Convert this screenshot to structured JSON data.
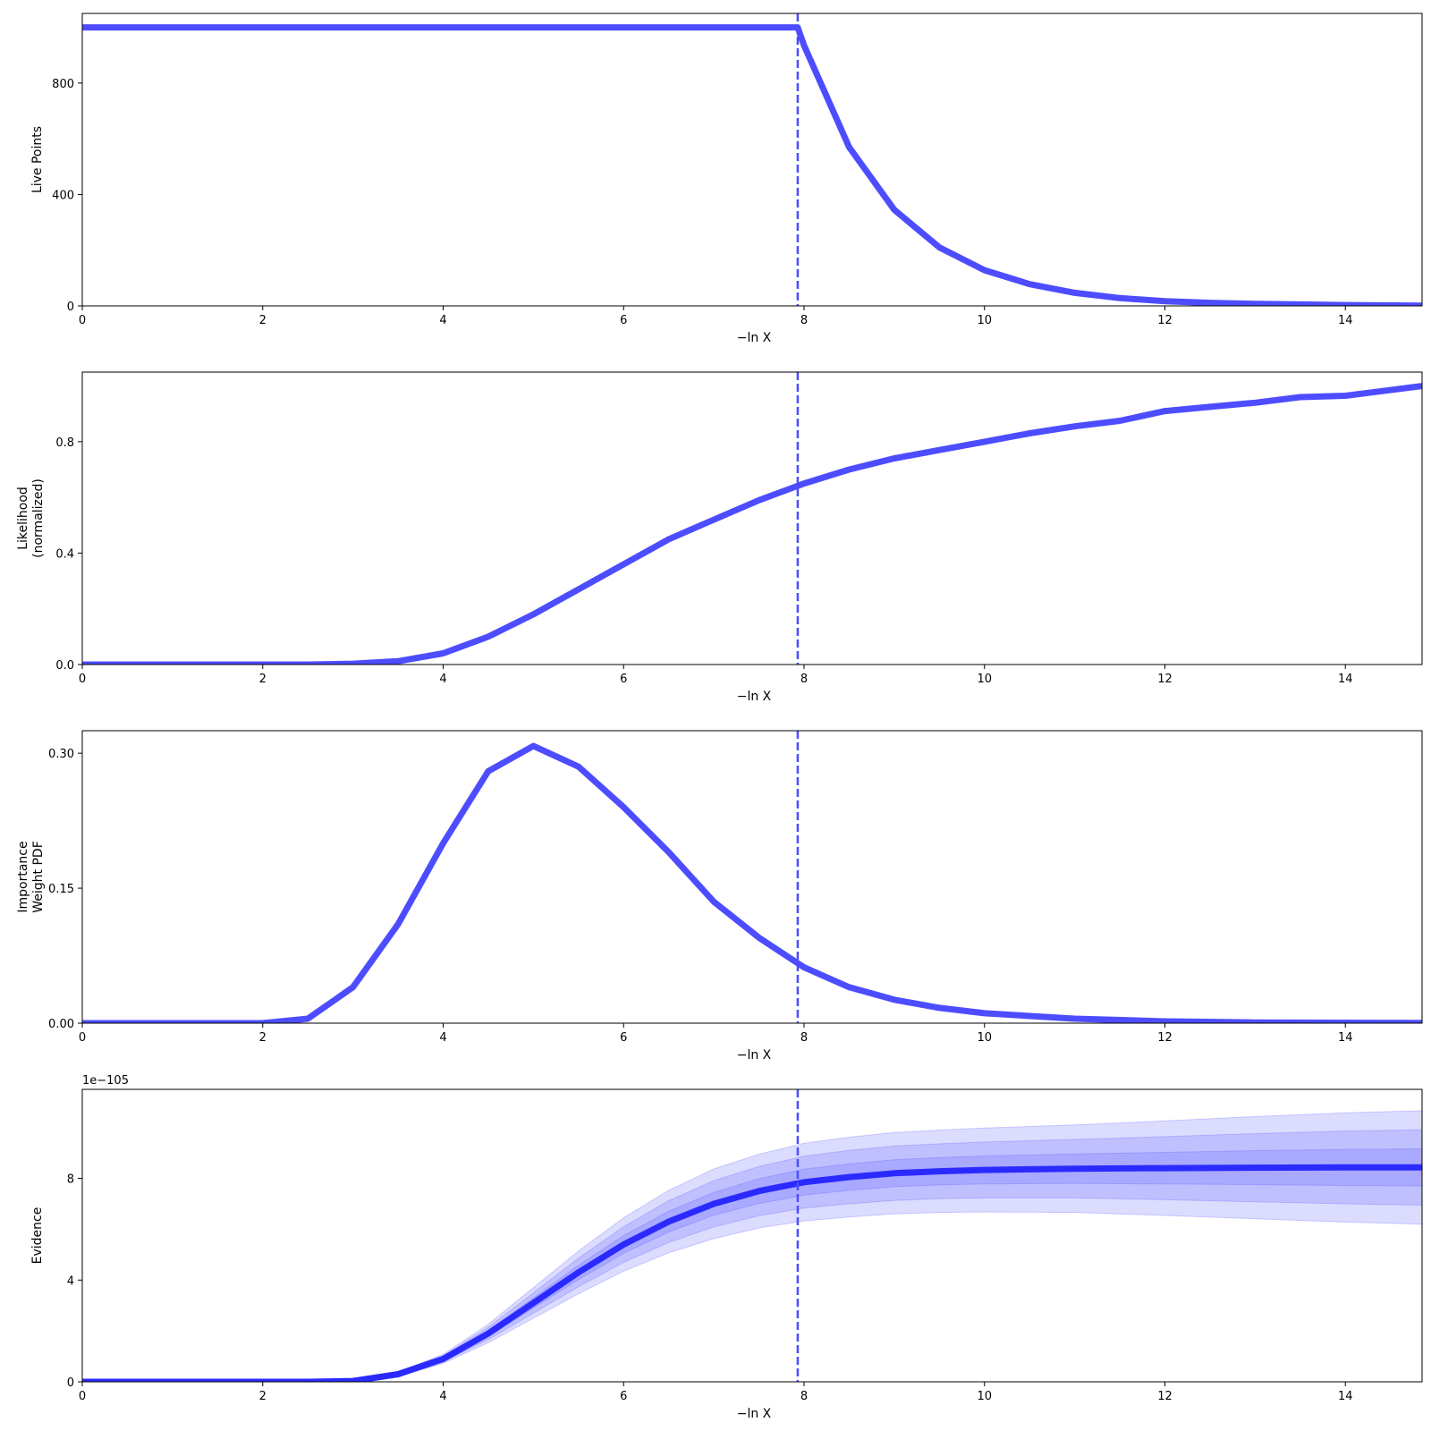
{
  "colors": {
    "line": "#4d4dff",
    "evidence_line": "#2a2aff",
    "band": "#5050ff",
    "axes": "#000000",
    "background": "#ffffff"
  },
  "chart_data": [
    {
      "type": "line",
      "title": "",
      "xlabel": "−ln X",
      "ylabel": [
        "Live Points"
      ],
      "xlim": [
        0,
        14.85
      ],
      "ylim": [
        0,
        1050
      ],
      "xticks": [
        0,
        2,
        4,
        6,
        8,
        10,
        12,
        14
      ],
      "xtick_labels": [
        "0",
        "2",
        "4",
        "6",
        "8",
        "10",
        "12",
        "14"
      ],
      "yticks": [
        0,
        400,
        800
      ],
      "ytick_labels": [
        "0",
        "400",
        "800"
      ],
      "vline_x": 7.93,
      "series": [
        {
          "x": [
            0,
            7.93,
            8.0,
            8.5,
            9.0,
            9.5,
            10.0,
            10.5,
            11.0,
            11.5,
            12.0,
            12.5,
            13.0,
            13.5,
            14.0,
            14.85
          ],
          "values": [
            1000,
            1000,
            935,
            570,
            345,
            210,
            128,
            78,
            47,
            28,
            17,
            11,
            7,
            5,
            3,
            1
          ]
        }
      ]
    },
    {
      "type": "line",
      "title": "",
      "xlabel": "−ln X",
      "ylabel": [
        "Likelihood",
        "(normalized)"
      ],
      "xlim": [
        0,
        14.85
      ],
      "ylim": [
        0,
        1.05
      ],
      "xticks": [
        0,
        2,
        4,
        6,
        8,
        10,
        12,
        14
      ],
      "xtick_labels": [
        "0",
        "2",
        "4",
        "6",
        "8",
        "10",
        "12",
        "14"
      ],
      "yticks": [
        0,
        0.4,
        0.8
      ],
      "ytick_labels": [
        "0.0",
        "0.4",
        "0.8"
      ],
      "vline_x": 7.93,
      "series": [
        {
          "x": [
            0,
            2.5,
            3.0,
            3.5,
            4.0,
            4.5,
            5.0,
            5.5,
            6.0,
            6.5,
            7.0,
            7.5,
            8.0,
            8.5,
            9.0,
            9.5,
            10.0,
            10.5,
            11.0,
            11.5,
            12.0,
            12.5,
            13.0,
            13.5,
            14.0,
            14.85
          ],
          "values": [
            0,
            0,
            0.003,
            0.012,
            0.04,
            0.1,
            0.18,
            0.27,
            0.36,
            0.45,
            0.52,
            0.59,
            0.65,
            0.7,
            0.74,
            0.77,
            0.8,
            0.83,
            0.855,
            0.875,
            0.91,
            0.925,
            0.94,
            0.96,
            0.965,
            1.0
          ]
        }
      ]
    },
    {
      "type": "line",
      "title": "",
      "xlabel": "−ln X",
      "ylabel": [
        "Importance",
        "Weight PDF"
      ],
      "xlim": [
        0,
        14.85
      ],
      "ylim": [
        0,
        0.325
      ],
      "xticks": [
        0,
        2,
        4,
        6,
        8,
        10,
        12,
        14
      ],
      "xtick_labels": [
        "0",
        "2",
        "4",
        "6",
        "8",
        "10",
        "12",
        "14"
      ],
      "yticks": [
        0,
        0.15,
        0.3
      ],
      "ytick_labels": [
        "0.00",
        "0.15",
        "0.30"
      ],
      "vline_x": 7.93,
      "series": [
        {
          "x": [
            0,
            2.0,
            2.5,
            3.0,
            3.5,
            4.0,
            4.5,
            5.0,
            5.5,
            6.0,
            6.5,
            7.0,
            7.5,
            8.0,
            8.5,
            9.0,
            9.5,
            10.0,
            11.0,
            12.0,
            13.0,
            14.85
          ],
          "values": [
            0,
            0,
            0.005,
            0.04,
            0.11,
            0.2,
            0.28,
            0.308,
            0.285,
            0.24,
            0.19,
            0.135,
            0.095,
            0.062,
            0.04,
            0.026,
            0.017,
            0.011,
            0.005,
            0.002,
            0.0008,
            0.0002
          ]
        }
      ]
    },
    {
      "type": "area",
      "title": "",
      "xlabel": "−ln X",
      "ylabel": [
        "Evidence"
      ],
      "offset_text": "1e−105",
      "xlim": [
        0,
        14.85
      ],
      "ylim": [
        0,
        11.5
      ],
      "xticks": [
        0,
        2,
        4,
        6,
        8,
        10,
        12,
        14
      ],
      "xtick_labels": [
        "0",
        "2",
        "4",
        "6",
        "8",
        "10",
        "12",
        "14"
      ],
      "yticks": [
        0,
        4,
        8
      ],
      "ytick_labels": [
        "0",
        "4",
        "8"
      ],
      "vline_x": 7.93,
      "series": [
        {
          "x": [
            0,
            2.5,
            3.0,
            3.5,
            4.0,
            4.5,
            5.0,
            5.5,
            6.0,
            6.5,
            7.0,
            7.5,
            8.0,
            8.5,
            9.0,
            9.5,
            10.0,
            11.0,
            12.0,
            13.0,
            14.0,
            14.85
          ],
          "values": [
            0,
            0,
            0.03,
            0.3,
            0.9,
            1.9,
            3.1,
            4.3,
            5.4,
            6.3,
            7.0,
            7.5,
            7.85,
            8.05,
            8.2,
            8.28,
            8.33,
            8.38,
            8.4,
            8.42,
            8.43,
            8.43
          ],
          "bands": [
            {
              "lower": [
                0,
                0,
                0.02,
                0.27,
                0.84,
                1.78,
                2.9,
                4.02,
                5.05,
                5.89,
                6.55,
                7.01,
                7.34,
                7.53,
                7.67,
                7.74,
                7.78,
                7.8,
                7.78,
                7.75,
                7.72,
                7.7
              ],
              "upper": [
                0,
                0,
                0.04,
                0.33,
                0.96,
                2.02,
                3.3,
                4.58,
                5.75,
                6.71,
                7.45,
                7.99,
                8.36,
                8.57,
                8.73,
                8.82,
                8.88,
                8.96,
                9.02,
                9.09,
                9.14,
                9.16
              ]
            },
            {
              "lower": [
                0,
                0,
                0.02,
                0.24,
                0.78,
                1.66,
                2.7,
                3.74,
                4.7,
                5.48,
                6.09,
                6.53,
                6.83,
                7.0,
                7.13,
                7.2,
                7.23,
                7.23,
                7.16,
                7.08,
                7.0,
                6.95
              ],
              "upper": [
                0,
                0,
                0.04,
                0.36,
                1.02,
                2.14,
                3.5,
                4.86,
                6.1,
                7.12,
                7.91,
                8.47,
                8.87,
                9.1,
                9.27,
                9.36,
                9.43,
                9.53,
                9.64,
                9.76,
                9.86,
                9.91
              ]
            },
            {
              "lower": [
                0,
                0,
                0.01,
                0.21,
                0.72,
                1.54,
                2.5,
                3.46,
                4.35,
                5.07,
                5.63,
                6.05,
                6.32,
                6.48,
                6.6,
                6.66,
                6.68,
                6.66,
                6.54,
                6.41,
                6.28,
                6.2
              ],
              "upper": [
                0,
                0,
                0.05,
                0.39,
                1.08,
                2.26,
                3.7,
                5.14,
                6.45,
                7.53,
                8.37,
                8.95,
                9.38,
                9.62,
                9.8,
                9.9,
                9.98,
                10.1,
                10.26,
                10.43,
                10.58,
                10.66
              ]
            }
          ]
        }
      ]
    }
  ]
}
